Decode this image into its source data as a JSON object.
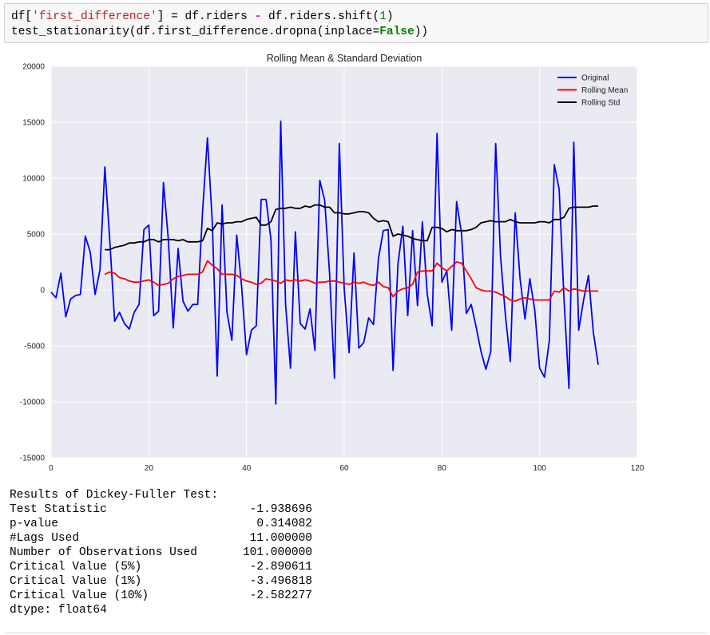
{
  "code": {
    "lines": [
      [
        "df[",
        "'first_difference'",
        "] = df.riders ",
        "-",
        " df.riders.shift(",
        "1",
        ")"
      ],
      [
        "test_stationarity(df.first_difference.dropna(inplace=",
        "False",
        "))"
      ]
    ]
  },
  "chart_data": {
    "type": "line",
    "title": "Rolling Mean & Standard Deviation",
    "x": [
      0,
      1,
      2,
      3,
      4,
      5,
      6,
      7,
      8,
      9,
      10,
      11,
      12,
      13,
      14,
      15,
      16,
      17,
      18,
      19,
      20,
      21,
      22,
      23,
      24,
      25,
      26,
      27,
      28,
      29,
      30,
      31,
      32,
      33,
      34,
      35,
      36,
      37,
      38,
      39,
      40,
      41,
      42,
      43,
      44,
      45,
      46,
      47,
      48,
      49,
      50,
      51,
      52,
      53,
      54,
      55,
      56,
      57,
      58,
      59,
      60,
      61,
      62,
      63,
      64,
      65,
      66,
      67,
      68,
      69,
      70,
      71,
      72,
      73,
      74,
      75,
      76,
      77,
      78,
      79,
      80,
      81,
      82,
      83,
      84,
      85,
      86,
      87,
      88,
      89,
      90,
      91,
      92,
      93,
      94,
      95,
      96,
      97,
      98,
      99,
      100,
      101,
      102,
      103,
      104,
      105,
      106,
      107,
      108,
      109,
      110,
      111,
      112
    ],
    "series": [
      {
        "name": "Original",
        "color": "#0000ff",
        "values": [
          -200,
          -700,
          1500,
          -2400,
          -800,
          -500,
          -400,
          4800,
          3400,
          -400,
          1800,
          11000,
          4500,
          -2800,
          -2000,
          -3000,
          -3500,
          -2000,
          -1300,
          5400,
          5800,
          -2300,
          -1900,
          9600,
          4500,
          -3400,
          3700,
          -1000,
          -1900,
          -1300,
          -1300,
          7000,
          13600,
          6000,
          -7700,
          7600,
          -2000,
          -4500,
          4900,
          300,
          -5800,
          -3600,
          -3200,
          8100,
          8100,
          4500,
          -10200,
          15100,
          -1300,
          -7000,
          5200,
          -3000,
          -3500,
          -1700,
          -5400,
          9800,
          8000,
          1500,
          -7900,
          13100,
          100,
          -5600,
          3300,
          -5200,
          -4700,
          -2500,
          -3100,
          2800,
          5300,
          5400,
          -7200,
          2300,
          5700,
          -2300,
          5300,
          -1400,
          6100,
          -400,
          -3200,
          14000,
          700,
          1700,
          -3600,
          7900,
          5100,
          -2100,
          -1300,
          -3300,
          -5500,
          -7100,
          -5500,
          13100,
          3000,
          -2300,
          -6400,
          6900,
          1000,
          -2600,
          1000,
          -1800,
          -7000,
          -7800,
          -4500,
          11200,
          9000,
          -900,
          -8800,
          13200,
          -3600,
          -900,
          1300,
          -3800,
          -6700
        ]
      },
      {
        "name": "Rolling Mean",
        "color": "#ff0000",
        "values": [
          null,
          null,
          null,
          null,
          null,
          null,
          null,
          null,
          null,
          null,
          null,
          1400,
          1600,
          1500,
          1100,
          1000,
          800,
          700,
          700,
          800,
          900,
          700,
          400,
          500,
          600,
          1000,
          1200,
          1300,
          1400,
          1400,
          1400,
          1600,
          2600,
          2200,
          1900,
          1400,
          1400,
          1400,
          1300,
          1000,
          800,
          700,
          500,
          600,
          1000,
          900,
          800,
          600,
          900,
          800,
          900,
          800,
          900,
          800,
          600,
          700,
          700,
          800,
          800,
          700,
          600,
          500,
          700,
          600,
          700,
          500,
          400,
          700,
          300,
          200,
          -600,
          -100,
          100,
          200,
          500,
          1600,
          1700,
          1700,
          1700,
          2400,
          2000,
          1700,
          2100,
          2500,
          2400,
          1700,
          1000,
          200,
          0,
          -100,
          -100,
          -200,
          -400,
          -600,
          -900,
          -1000,
          -800,
          -700,
          -800,
          -900,
          -900,
          -900,
          -900,
          -100,
          -200,
          200,
          -100,
          100,
          0,
          -100,
          -100,
          -100,
          -100
        ]
      },
      {
        "name": "Rolling Std",
        "color": "#000000",
        "values": [
          null,
          null,
          null,
          null,
          null,
          null,
          null,
          null,
          null,
          null,
          null,
          3600,
          3600,
          3800,
          3900,
          4000,
          4200,
          4200,
          4300,
          4300,
          4500,
          4500,
          4300,
          4500,
          4500,
          4500,
          4400,
          4500,
          4300,
          4300,
          4300,
          4400,
          5500,
          5300,
          6000,
          5900,
          6000,
          6000,
          6100,
          6100,
          6300,
          6400,
          6500,
          5800,
          5800,
          6100,
          7200,
          7300,
          7300,
          7400,
          7300,
          7300,
          7500,
          7400,
          7600,
          7600,
          7400,
          7400,
          6900,
          6900,
          6800,
          6800,
          6900,
          7000,
          7000,
          6900,
          6400,
          6100,
          6200,
          6100,
          4800,
          5000,
          4900,
          4800,
          4600,
          4500,
          4400,
          4400,
          5600,
          5600,
          5500,
          5200,
          5400,
          5300,
          5300,
          5300,
          5400,
          5600,
          6000,
          6100,
          6200,
          6100,
          6100,
          6100,
          6300,
          6100,
          6000,
          6000,
          6000,
          6000,
          6100,
          6100,
          6000,
          6300,
          6300,
          6500,
          7300,
          7400,
          7400,
          7400,
          7400,
          7500,
          7500
        ]
      }
    ],
    "xlim": [
      0,
      120
    ],
    "xticks": [
      0,
      20,
      40,
      60,
      80,
      100,
      120
    ],
    "ylim": [
      -15000,
      20000
    ],
    "yticks": [
      -15000,
      -10000,
      -5000,
      0,
      5000,
      10000,
      15000,
      20000
    ],
    "grid": true,
    "legend": "upper-right"
  },
  "output": {
    "heading": "Results of Dickey-Fuller Test:",
    "rows": [
      [
        "Test Statistic",
        "-1.938696"
      ],
      [
        "p-value",
        "0.314082"
      ],
      [
        "#Lags Used",
        "11.000000"
      ],
      [
        "Number of Observations Used",
        "101.000000"
      ],
      [
        "Critical Value (5%)",
        "-2.890611"
      ],
      [
        "Critical Value (1%)",
        "-3.496818"
      ],
      [
        "Critical Value (10%)",
        "-2.582277"
      ]
    ],
    "footer": "dtype: float64"
  }
}
